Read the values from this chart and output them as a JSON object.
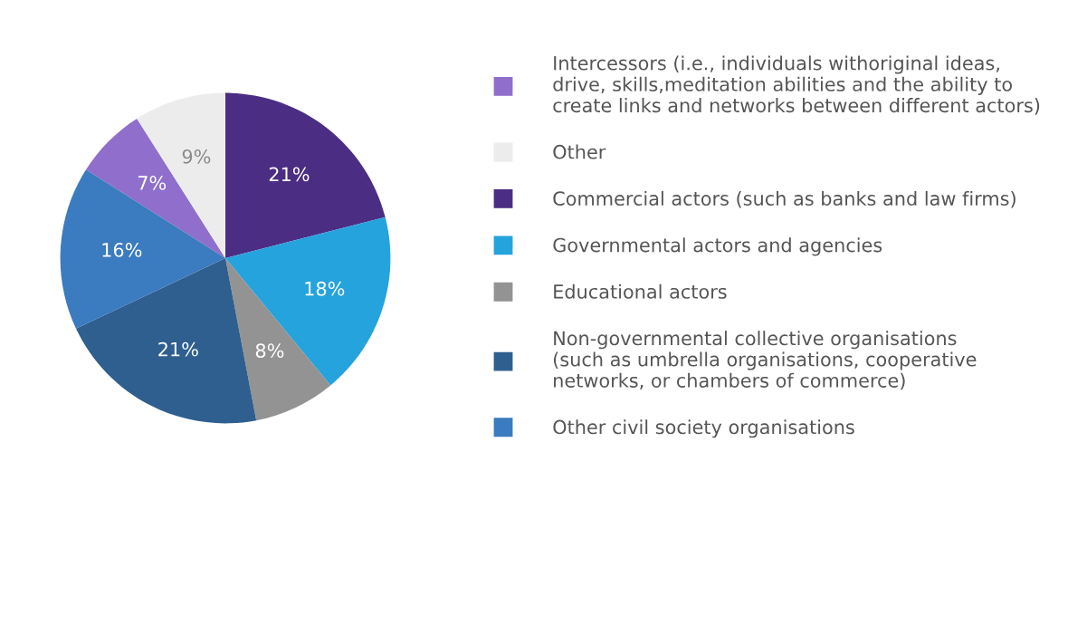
{
  "chart_data": {
    "type": "pie",
    "categories": [
      "Intercessors (i.e., individuals withoriginal ideas,\ndrive, skills,meditation abilities and the ability to\ncreate links and networks between different actors)",
      "Other",
      "Commercial actors (such as banks and law firms)",
      "Governmental actors and agencies",
      "Educational actors",
      "Non-governmental collective organisations\n(such as umbrella organisations, cooperative\nnetworks, or chambers of commerce)",
      "Other civil society organisations"
    ],
    "values": [
      7,
      9,
      21,
      18,
      8,
      21,
      16
    ],
    "colors": [
      "#8f6fcb",
      "#ececec",
      "#4b2e83",
      "#25a3dc",
      "#939393",
      "#2e5f8f",
      "#3b7bbf"
    ],
    "value_labels": [
      "7%",
      "9%",
      "21%",
      "18%",
      "8%",
      "21%",
      "16%"
    ],
    "legend": "right"
  }
}
